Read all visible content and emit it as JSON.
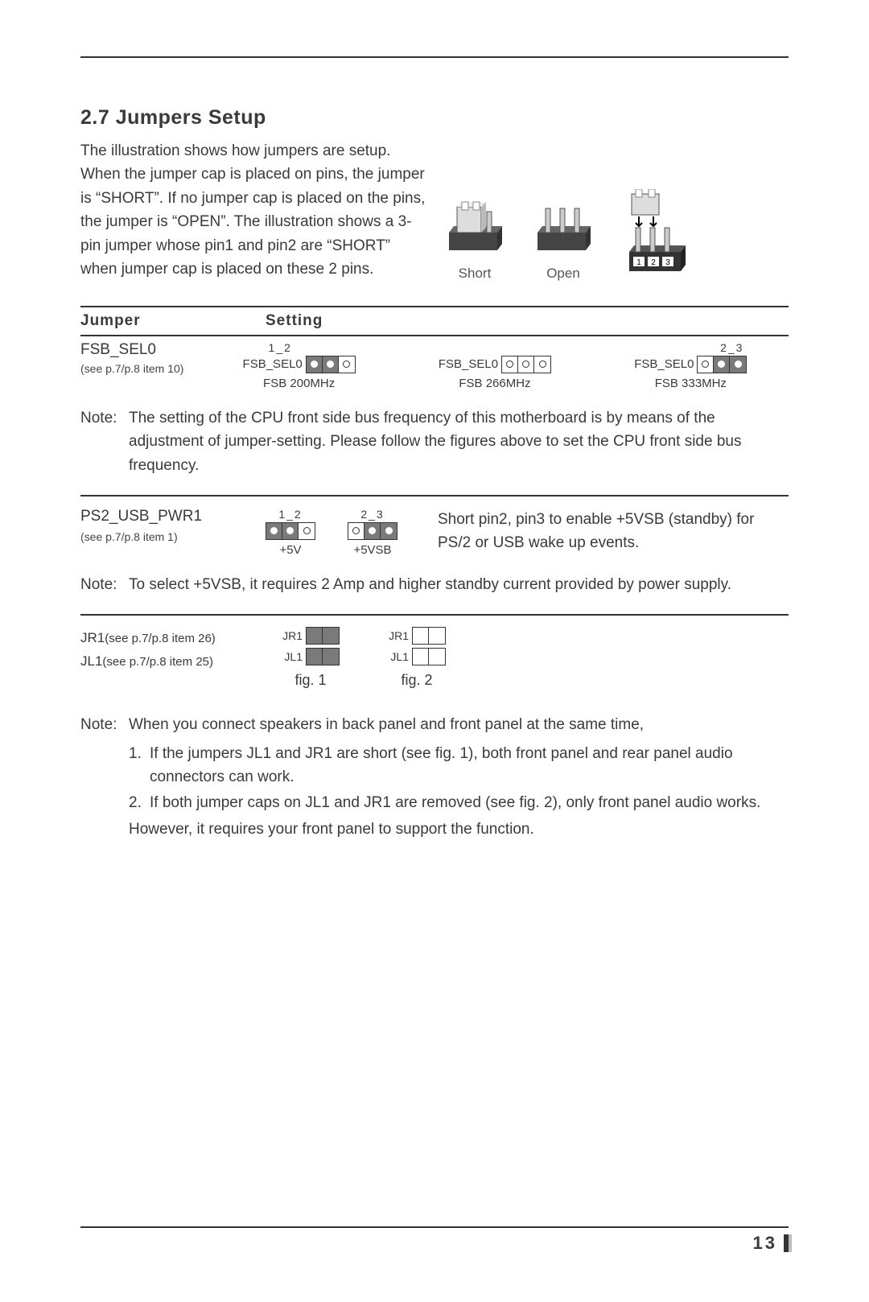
{
  "section_title": "2.7 Jumpers Setup",
  "intro": "The illustration shows how jumpers are setup. When the jumper cap is placed on pins, the jumper is “SHORT”. If no jumper cap is placed on the pins, the jumper is “OPEN”. The illustration shows a 3-pin jumper whose pin1 and pin2 are “SHORT” when jumper cap is placed on these 2 pins.",
  "illus_labels": {
    "short": "Short",
    "open": "Open"
  },
  "headers": {
    "jumper": "Jumper",
    "setting": "Setting"
  },
  "fsb": {
    "name": "FSB_SEL0",
    "ref": "(see p.7/p.8  item 10)",
    "settings": [
      {
        "anno": "1_2",
        "anno_align": "left",
        "left_label": "FSB_SEL0",
        "pins": [
          "f",
          "f",
          "o"
        ],
        "bottom": "FSB 200MHz"
      },
      {
        "anno": "",
        "anno_align": "left",
        "left_label": "FSB_SEL0",
        "pins": [
          "o",
          "o",
          "o"
        ],
        "bottom": "FSB 266MHz"
      },
      {
        "anno": "2_3",
        "anno_align": "right",
        "left_label": "FSB_SEL0",
        "pins": [
          "o",
          "f",
          "f"
        ],
        "bottom": "FSB 333MHz"
      }
    ]
  },
  "note1_label": "Note:",
  "note1": "The setting of the CPU front side bus frequency of this motherboard is by means of the adjustment of jumper-setting. Please follow the figures above to set the CPU front side bus frequency.",
  "ps2": {
    "name": "PS2_USB_PWR1",
    "ref": "(see p.7/p.8 item 1)",
    "settings": [
      {
        "anno": "1_2",
        "pins": [
          "f",
          "f",
          "o"
        ],
        "bottom": "+5V"
      },
      {
        "anno": "2_3",
        "pins": [
          "o",
          "f",
          "f"
        ],
        "bottom": "+5VSB"
      }
    ],
    "desc": "Short pin2, pin3 to enable +5VSB (standby) for PS/2 or USB wake up events."
  },
  "note2_label": "Note:",
  "note2": "To select +5VSB, it requires 2 Amp and higher standby current provided by power supply.",
  "jrjl": {
    "jr1_name": "JR1",
    "jr1_ref": "(see p.7/p.8 item 26)",
    "jl1_name": "JL1",
    "jl1_ref": "(see p.7/p.8 item 25)",
    "figs": [
      {
        "jr1": [
          "f",
          "f"
        ],
        "jl1": [
          "f",
          "f"
        ],
        "caption": "fig. 1"
      },
      {
        "jr1": [
          "o",
          "o"
        ],
        "jl1": [
          "o",
          "o"
        ],
        "caption": "fig. 2"
      }
    ],
    "mini_jr1": "JR1",
    "mini_jl1": "JL1"
  },
  "note3_label": "Note:",
  "note3_lead": "When you connect speakers in back panel and front panel at the same time,",
  "note3_items": [
    "If the jumpers JL1 and JR1 are short (see fig. 1), both front panel and rear panel audio connectors can work.",
    "If both jumper caps on JL1 and JR1 are removed (see fig. 2), only front panel audio works."
  ],
  "note3_tail": "However, it requires your front panel to support the function.",
  "page_number": "13"
}
